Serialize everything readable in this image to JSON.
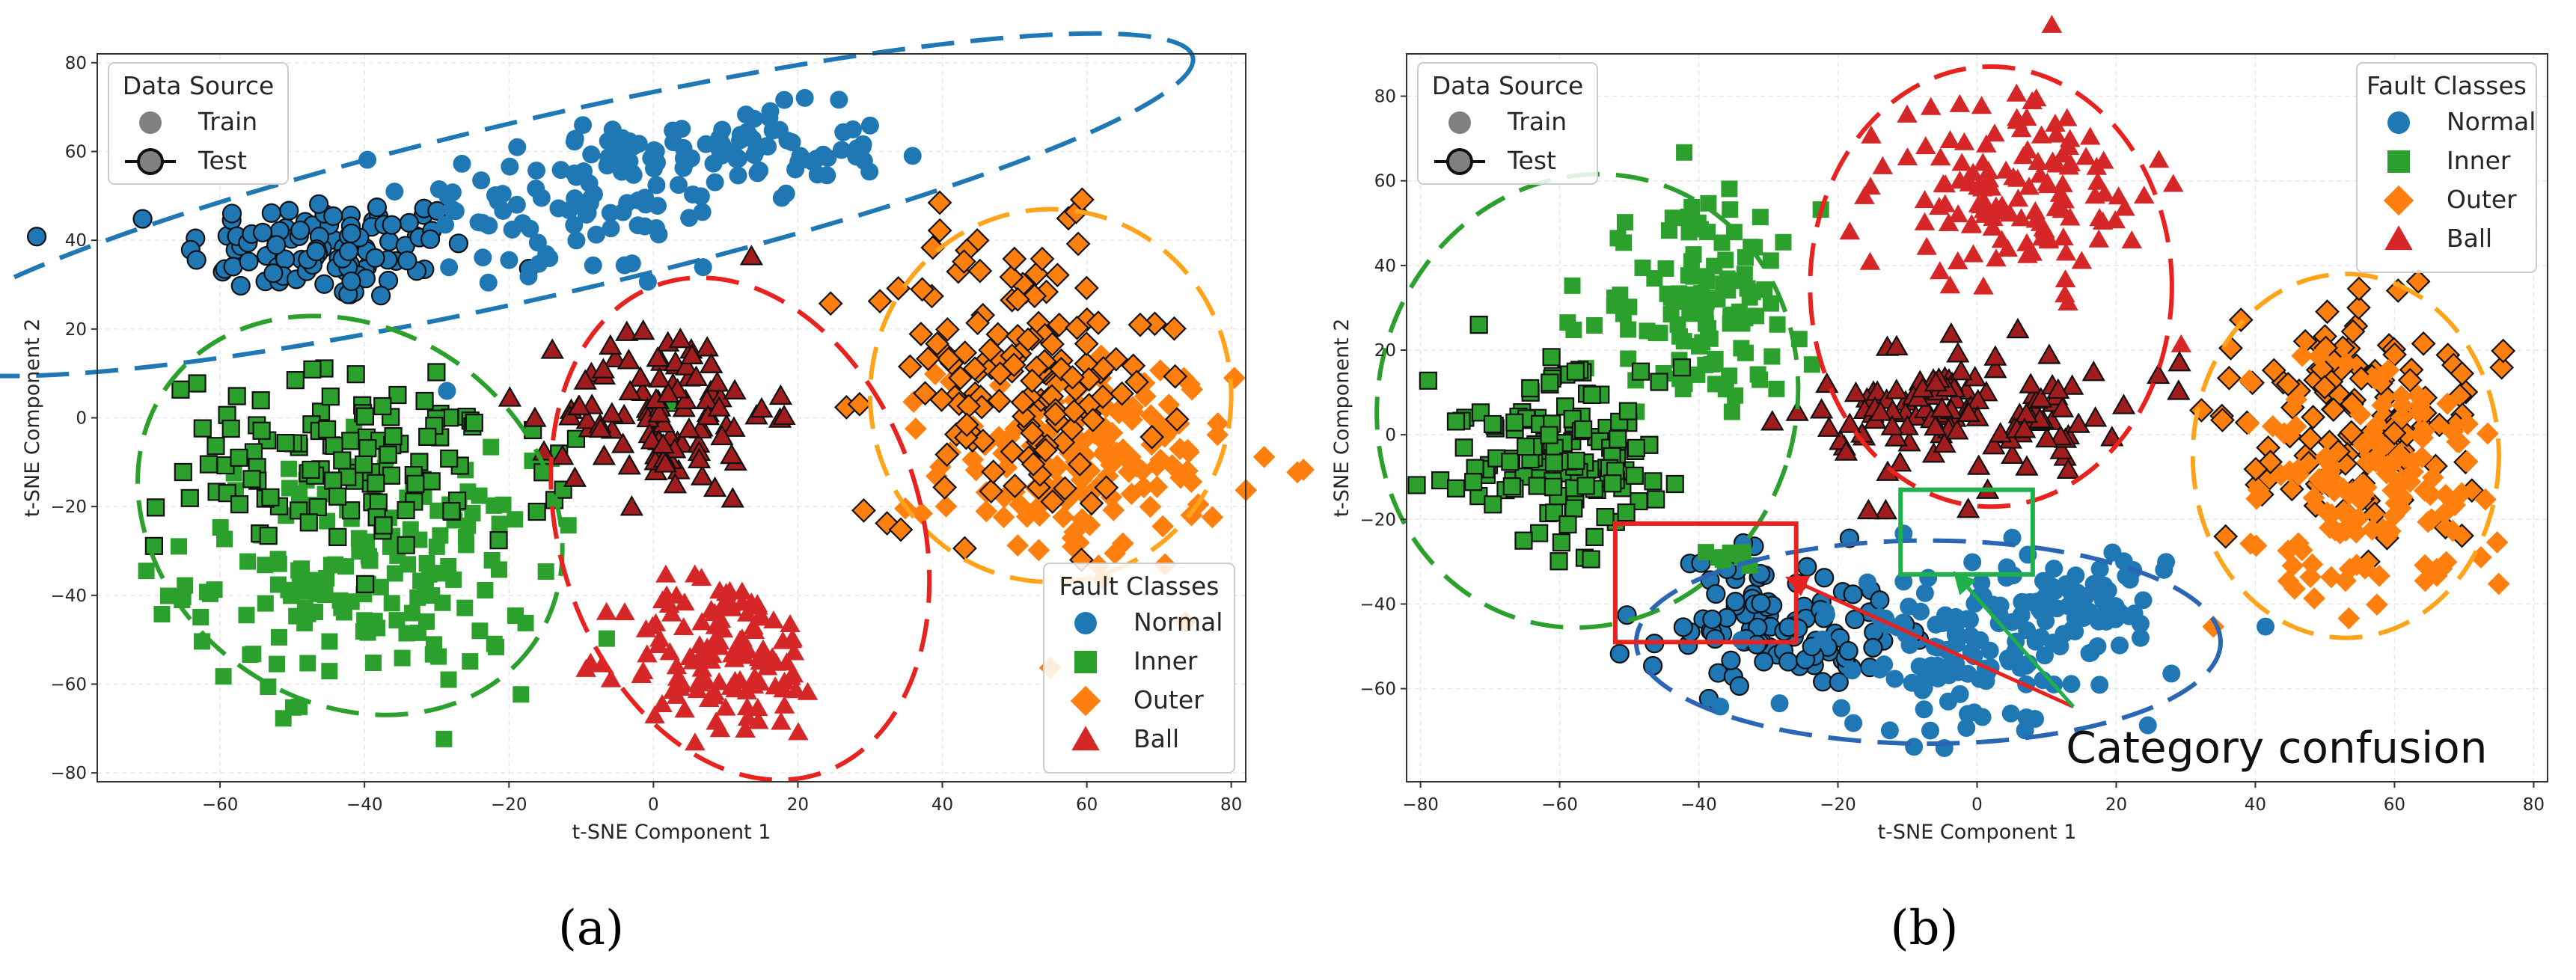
{
  "colors": {
    "normal": "#1f77b4",
    "inner": "#2ca02c",
    "outer": "#ff7f0e",
    "ball_train": "#d62728",
    "ball_test": "#a11d1d",
    "normal_ellipse": "#1f77b4",
    "inner_ellipse": "#2ca02c",
    "outer_ellipse": "#ffa31a",
    "ball_ellipse": "#e8221e",
    "normal_ellipse_b": "#2b66b5",
    "confusion_red": "#e8221e",
    "confusion_green": "#1fb04c",
    "grid": "#e6e6e6",
    "text": "#262626"
  },
  "panel_labels": [
    "(a)",
    "(b)"
  ],
  "chart_data": [
    {
      "type": "scatter",
      "panel": "(a)",
      "xlabel": "t-SNE Component 1",
      "ylabel": "t-SNE Component 2",
      "xlim": [
        -77,
        82
      ],
      "ylim": [
        -82,
        82
      ],
      "xticks": [
        -60,
        -40,
        -20,
        0,
        20,
        40,
        60,
        80
      ],
      "yticks": [
        -80,
        -60,
        -40,
        -20,
        0,
        20,
        40,
        60,
        80
      ],
      "grid": true,
      "legend_source": {
        "title": "Data Source",
        "entries": [
          "Train",
          "Test"
        ],
        "placement": "top-left"
      },
      "legend_classes": {
        "title": "Fault Classes",
        "entries": [
          "Normal",
          "Inner",
          "Outer",
          "Ball"
        ],
        "placement": "bottom-right"
      },
      "clusters": [
        {
          "cls": "Normal",
          "source": "test",
          "marker": "circle",
          "cx": -45,
          "cy": 38,
          "sx": 10,
          "sy": 6,
          "n": 110
        },
        {
          "cls": "Normal",
          "source": "train",
          "marker": "circle",
          "cx": -10,
          "cy": 48,
          "sx": 12,
          "sy": 10,
          "n": 90
        },
        {
          "cls": "Normal",
          "source": "train",
          "marker": "circle",
          "cx": 12,
          "cy": 60,
          "sx": 10,
          "sy": 5,
          "n": 80
        },
        {
          "cls": "Inner",
          "source": "train",
          "marker": "square",
          "cx": -40,
          "cy": -35,
          "sx": 12,
          "sy": 13,
          "n": 170
        },
        {
          "cls": "Inner",
          "source": "test",
          "marker": "square",
          "cx": -40,
          "cy": -10,
          "sx": 14,
          "sy": 10,
          "n": 120
        },
        {
          "cls": "Outer",
          "source": "train",
          "marker": "diamond",
          "cx": 60,
          "cy": -10,
          "sx": 10,
          "sy": 12,
          "n": 150
        },
        {
          "cls": "Outer",
          "source": "test",
          "marker": "diamond",
          "cx": 50,
          "cy": 10,
          "sx": 10,
          "sy": 16,
          "n": 150
        },
        {
          "cls": "Ball",
          "source": "test",
          "marker": "triangle",
          "cx": 2,
          "cy": 2,
          "sx": 7,
          "sy": 10,
          "n": 110
        },
        {
          "cls": "Ball",
          "source": "train",
          "marker": "triangle",
          "cx": 10,
          "cy": -54,
          "sx": 7,
          "sy": 9,
          "n": 130
        }
      ],
      "ellipses": [
        {
          "cls": "Normal",
          "color_key": "normal_ellipse",
          "cx": -14,
          "cy": 48,
          "rx": 91,
          "ry": 20,
          "angle_deg": 13
        },
        {
          "cls": "Inner",
          "color_key": "inner_ellipse",
          "cx": -42,
          "cy": -22,
          "rx": 31,
          "ry": 42,
          "angle_deg": -35
        },
        {
          "cls": "Outer",
          "color_key": "outer_ellipse",
          "cx": 55,
          "cy": 5,
          "rx": 25,
          "ry": 42,
          "angle_deg": 0
        },
        {
          "cls": "Ball",
          "color_key": "ball_ellipse",
          "cx": 12,
          "cy": -25,
          "rx": 25,
          "ry": 58,
          "angle_deg": 18
        }
      ]
    },
    {
      "type": "scatter",
      "panel": "(b)",
      "xlabel": "t-SNE Component 1",
      "ylabel": "t-SNE Component 2",
      "xlim": [
        -82,
        82
      ],
      "ylim": [
        -82,
        90
      ],
      "xticks": [
        -80,
        -60,
        -40,
        -20,
        0,
        20,
        40,
        60,
        80
      ],
      "yticks": [
        -60,
        -40,
        -20,
        0,
        20,
        40,
        60,
        80
      ],
      "grid": true,
      "legend_source": {
        "title": "Data Source",
        "entries": [
          "Train",
          "Test"
        ],
        "placement": "top-left"
      },
      "legend_classes": {
        "title": "Fault Classes",
        "entries": [
          "Normal",
          "Inner",
          "Outer",
          "Ball"
        ],
        "placement": "top-right"
      },
      "clusters": [
        {
          "cls": "Inner",
          "source": "train",
          "marker": "square",
          "cx": -40,
          "cy": 30,
          "sx": 8,
          "sy": 12,
          "n": 120
        },
        {
          "cls": "Inner",
          "source": "test",
          "marker": "square",
          "cx": -60,
          "cy": -5,
          "sx": 9,
          "sy": 10,
          "n": 140
        },
        {
          "cls": "Ball",
          "source": "train",
          "marker": "triangle",
          "cx": 5,
          "cy": 58,
          "sx": 9,
          "sy": 11,
          "n": 130
        },
        {
          "cls": "Ball",
          "source": "test",
          "marker": "triangle",
          "cx": 0,
          "cy": 5,
          "sx": 11,
          "sy": 8,
          "n": 130
        },
        {
          "cls": "Outer",
          "source": "test",
          "marker": "diamond",
          "cx": 55,
          "cy": 5,
          "sx": 9,
          "sy": 14,
          "n": 130
        },
        {
          "cls": "Outer",
          "source": "train",
          "marker": "diamond",
          "cx": 57,
          "cy": -15,
          "sx": 9,
          "sy": 14,
          "n": 130
        },
        {
          "cls": "Normal",
          "source": "test",
          "marker": "circle",
          "cx": -30,
          "cy": -45,
          "sx": 9,
          "sy": 8,
          "n": 110
        },
        {
          "cls": "Normal",
          "source": "train",
          "marker": "circle",
          "cx": 0,
          "cy": -50,
          "sx": 11,
          "sy": 10,
          "n": 130
        },
        {
          "cls": "Normal",
          "source": "train",
          "marker": "circle",
          "cx": 15,
          "cy": -40,
          "sx": 6,
          "sy": 6,
          "n": 50
        },
        {
          "cls": "Inner",
          "source": "train",
          "marker": "square",
          "cx": -36,
          "cy": -27,
          "sx": 3,
          "sy": 3,
          "n": 8
        }
      ],
      "ellipses": [
        {
          "cls": "Inner",
          "color_key": "inner_ellipse",
          "cx": -56,
          "cy": 8,
          "rx": 30,
          "ry": 54,
          "angle_deg": -18
        },
        {
          "cls": "Ball",
          "color_key": "ball_ellipse",
          "cx": 2,
          "cy": 35,
          "rx": 26,
          "ry": 52,
          "angle_deg": 0
        },
        {
          "cls": "Outer",
          "color_key": "outer_ellipse",
          "cx": 53,
          "cy": -5,
          "rx": 22,
          "ry": 43,
          "angle_deg": 0
        },
        {
          "cls": "Normal",
          "color_key": "normal_ellipse_b",
          "cx": -7,
          "cy": -49,
          "rx": 42,
          "ry": 24,
          "angle_deg": 0
        }
      ],
      "confusion_boxes": [
        {
          "color_key": "confusion_red",
          "x0": -52,
          "x1": -26,
          "y0": -49,
          "y1": -21
        },
        {
          "color_key": "confusion_green",
          "x0": -11,
          "x1": 8,
          "y0": -33,
          "y1": -13
        }
      ],
      "annotation": {
        "text": "Category confusion",
        "anchor": [
          16,
          -74
        ],
        "arrow_targets": [
          {
            "color_key": "confusion_red",
            "to": [
              -27,
              -34
            ]
          },
          {
            "color_key": "confusion_green",
            "to": [
              -3,
              -33
            ]
          }
        ]
      }
    }
  ]
}
